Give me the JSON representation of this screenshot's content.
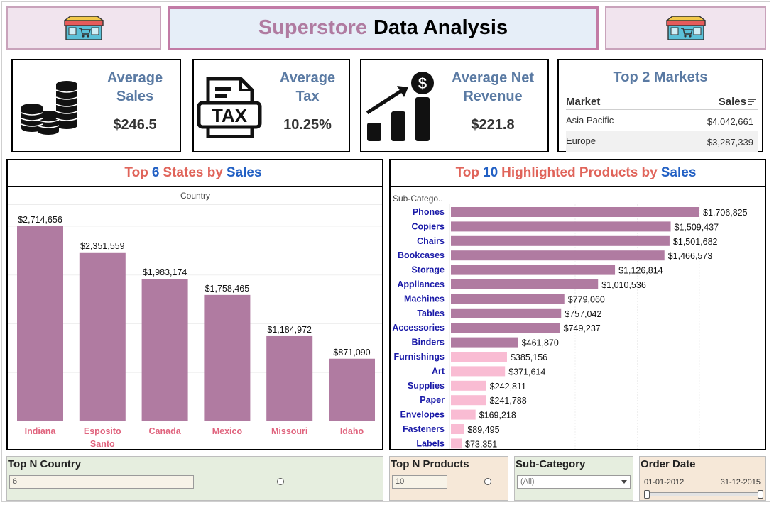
{
  "header": {
    "title_part1": "Superstore",
    "title_part2": "Data Analysis",
    "left_icon": "storefront-icon",
    "right_icon": "storefront-icon"
  },
  "kpis": {
    "avg_sales": {
      "label_line1": "Average",
      "label_line2": "Sales",
      "value": "$246.5",
      "icon": "coins-stack-icon"
    },
    "avg_tax": {
      "label_line1": "Average",
      "label_line2": "Tax",
      "value": "10.25%",
      "icon": "tax-document-icon"
    },
    "avg_net_revenue": {
      "label_line1": "Average Net",
      "label_line2": "Revenue",
      "value": "$221.8",
      "icon": "growth-chart-dollar-icon"
    }
  },
  "markets": {
    "title": "Top 2 Markets",
    "col_market": "Market",
    "col_sales": "Sales",
    "rows": [
      {
        "market": "Asia Pacific",
        "sales": "$4,042,661"
      },
      {
        "market": "Europe",
        "sales": "$3,287,339"
      }
    ]
  },
  "states_chart": {
    "title_part1": "Top",
    "title_n": "6",
    "title_part2": "States by",
    "title_measure": "Sales",
    "header_label": "Country"
  },
  "products_chart": {
    "title_part1": "Top",
    "title_n": "10",
    "title_part2": "Highlighted Products by",
    "title_measure": "Sales",
    "header_label": "Sub-Catego.."
  },
  "chart_data": [
    {
      "type": "bar",
      "orientation": "vertical",
      "title": "Top 6 States by Sales",
      "xlabel": "Country",
      "categories": [
        "Indiana",
        "Esposito Santo",
        "Canada",
        "Mexico",
        "Missouri",
        "Idaho"
      ],
      "values": [
        2714656,
        2351559,
        1983174,
        1758465,
        1184972,
        871090
      ],
      "labels": [
        "$2,714,656",
        "$2,351,559",
        "$1,983,174",
        "$1,758,465",
        "$1,184,972",
        "$871,090"
      ],
      "ylim": [
        0,
        2714656
      ],
      "grid": true,
      "bar_color": "#b07ba1"
    },
    {
      "type": "bar",
      "orientation": "horizontal",
      "title": "Top 10 Highlighted Products by Sales",
      "ylabel": "Sub-Catego..",
      "categories": [
        "Phones",
        "Copiers",
        "Chairs",
        "Bookcases",
        "Storage",
        "Appliances",
        "Machines",
        "Tables",
        "Accessories",
        "Binders",
        "Furnishings",
        "Art",
        "Supplies",
        "Paper",
        "Envelopes",
        "Fasteners",
        "Labels"
      ],
      "values": [
        1706825,
        1509437,
        1501682,
        1466573,
        1126814,
        1010536,
        779060,
        757042,
        749237,
        461870,
        385156,
        371614,
        242811,
        241788,
        169218,
        89495,
        73351
      ],
      "labels": [
        "$1,706,825",
        "$1,509,437",
        "$1,501,682",
        "$1,466,573",
        "$1,126,814",
        "$1,010,536",
        "$779,060",
        "$757,042",
        "$749,237",
        "$461,870",
        "$385,156",
        "$371,614",
        "$242,811",
        "$241,788",
        "$169,218",
        "$89,495",
        "$73,351"
      ],
      "highlighted_count": 10,
      "highlight_color": "#b07ba1",
      "other_color": "#f9bcd3",
      "xlim": [
        0,
        1706825
      ],
      "grid": true
    }
  ],
  "filters": {
    "top_n_country": {
      "label": "Top N Country",
      "value": "6",
      "level": 0.45
    },
    "top_n_products": {
      "label": "Top N Products",
      "value": "10",
      "level": 0.7
    },
    "sub_category": {
      "label": "Sub-Category",
      "value": "(All)"
    },
    "order_date": {
      "label": "Order Date",
      "start": "01-01-2012",
      "end": "31-12-2015"
    }
  },
  "colors": {
    "accent_pink": "#b07ba1",
    "title_red": "#e0645a",
    "title_blue": "#2260c4",
    "kpi_label": "#5a7aa3",
    "category_blue": "#1a1aa8",
    "state_label": "#e0647e",
    "filter_green": "#e6eedf",
    "filter_peach": "#f6e8d8"
  }
}
